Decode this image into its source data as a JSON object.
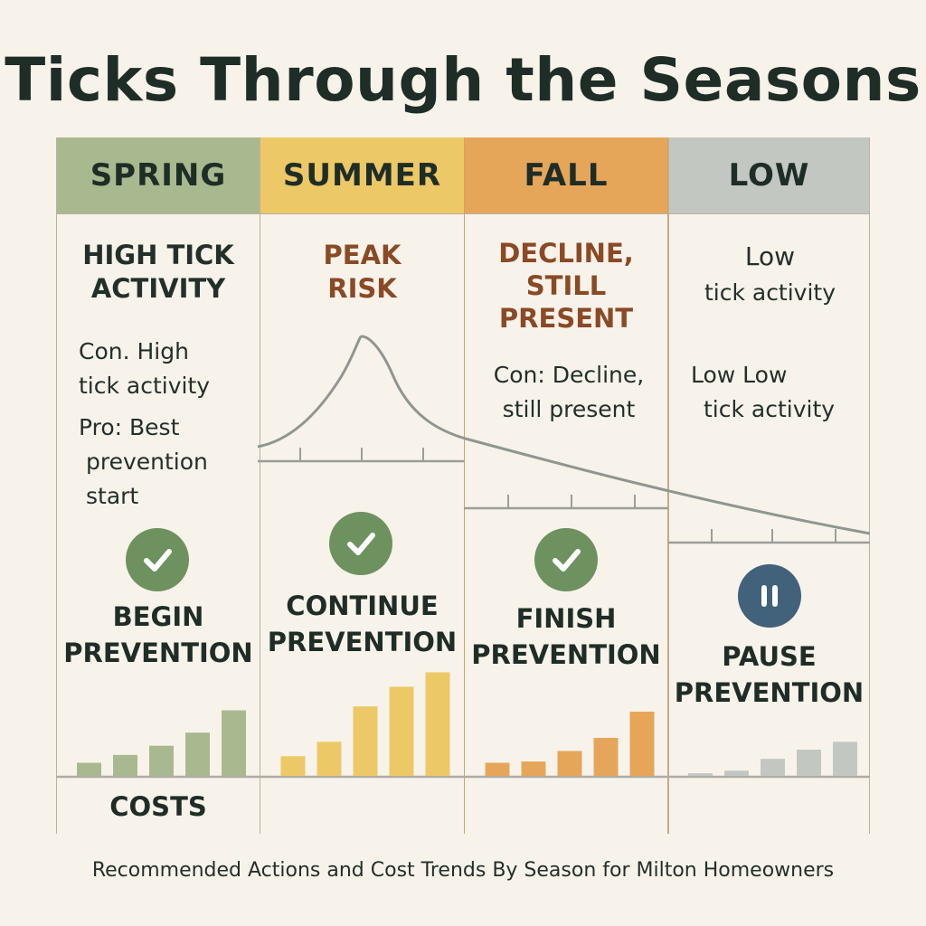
{
  "title": "Ticks Through the Seasons",
  "caption": "Recommended Actions and Cost Trends By Season for Milton Homeowners",
  "costs_label": "COSTS",
  "seasons": [
    {
      "name": "SPRING",
      "header_color": "#a9b98f",
      "accent_color": "#1f2d27",
      "main_lines": [
        "HIGH TICK",
        "ACTIVITY"
      ],
      "notes": [
        [
          "Con. High",
          "tick activity"
        ],
        [
          "Pro: Best",
          "prevention",
          "start"
        ]
      ],
      "icon": "checkmark-icon",
      "icon_color": "#6e9160",
      "action_lines": [
        "BEGIN",
        "PREVENTION"
      ],
      "bar_color": "#a9b98f",
      "cost_trend": [
        1,
        1.6,
        2.3,
        3.3,
        5
      ]
    },
    {
      "name": "SUMMER",
      "header_color": "#ecc867",
      "accent_color": "#8a4a26",
      "main_lines": [
        "PEAK",
        "RISK"
      ],
      "notes": [],
      "icon": "checkmark-icon",
      "icon_color": "#6e9160",
      "action_lines": [
        "CONTINUE",
        "PREVENTION"
      ],
      "bar_color": "#ecc867",
      "cost_trend": [
        1.5,
        2.6,
        5.3,
        6.8,
        7.9
      ]
    },
    {
      "name": "FALL",
      "header_color": "#e6a65a",
      "accent_color": "#8a4a26",
      "main_lines": [
        "DECLINE,",
        "STILL",
        "PRESENT"
      ],
      "notes": [
        [
          "Con: Decline,",
          "still present"
        ]
      ],
      "icon": "checkmark-icon",
      "icon_color": "#6e9160",
      "action_lines": [
        "FINISH",
        "PREVENTION"
      ],
      "bar_color": "#e6a65a",
      "cost_trend": [
        1,
        1.1,
        1.9,
        2.9,
        4.9
      ]
    },
    {
      "name": "LOW",
      "header_color": "#c3c7c2",
      "accent_color": "#1f2d27",
      "main_lines": [
        "Low",
        "tick activity"
      ],
      "notes": [
        [
          "Low Low",
          "tick activity"
        ]
      ],
      "icon": "pause-icon",
      "icon_color": "#42617a",
      "action_lines": [
        "PAUSE",
        "PREVENTION"
      ],
      "bar_color": "#c3c7c2",
      "cost_trend": [
        0.2,
        0.4,
        1.3,
        2.0,
        2.6
      ]
    }
  ],
  "risk_curve_color": "#8f9690"
}
